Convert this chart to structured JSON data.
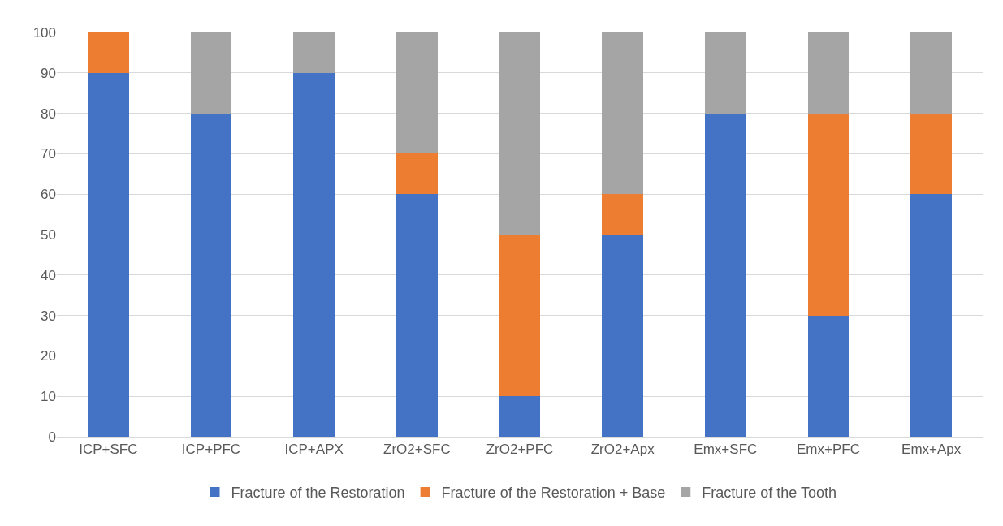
{
  "chart_data": {
    "type": "bar",
    "stacked": true,
    "categories": [
      "ICP+SFC",
      "ICP+PFC",
      "ICP+APX",
      "ZrO2+SFC",
      "ZrO2+PFC",
      "ZrO2+Apx",
      "Emx+SFC",
      "Emx+PFC",
      "Emx+Apx"
    ],
    "series": [
      {
        "name": "Fracture of the Restoration",
        "color": "#4472c4",
        "values": [
          90,
          80,
          90,
          60,
          10,
          50,
          80,
          30,
          60
        ]
      },
      {
        "name": "Fracture of the Restoration + Base",
        "color": "#ed7d31",
        "values": [
          10,
          0,
          0,
          10,
          40,
          10,
          0,
          50,
          20
        ]
      },
      {
        "name": "Fracture of the Tooth",
        "color": "#a5a5a5",
        "values": [
          0,
          20,
          10,
          30,
          50,
          40,
          20,
          20,
          20
        ]
      }
    ],
    "ylim": [
      0,
      100
    ],
    "yticks": [
      0,
      10,
      20,
      30,
      40,
      50,
      60,
      70,
      80,
      90,
      100
    ],
    "grid": "y",
    "legend": "bottom"
  }
}
